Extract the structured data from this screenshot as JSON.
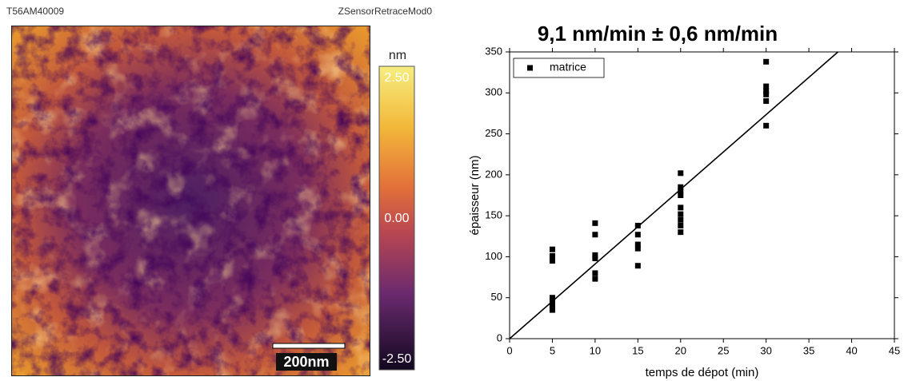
{
  "afm_panel": {
    "sample": "T56AM40009",
    "channel": "ZSensorRetraceMod0",
    "scale_bar": "200nm",
    "colorbar": {
      "unit": "nm",
      "lim": [
        -2.5,
        2.5
      ],
      "ticks": [
        {
          "value": 2.5,
          "label": "2.50"
        },
        {
          "value": 0,
          "label": "0.00"
        },
        {
          "value": -2.5,
          "label": "-2.50"
        }
      ]
    }
  },
  "chart_data": {
    "type": "scatter",
    "title": "9,1 nm/min ± 0,6 nm/min",
    "x_label": "temps de dépot (min)",
    "y_label": "épaisseur (nm)",
    "x": [
      5,
      5,
      5,
      5,
      5,
      5,
      5,
      5,
      10,
      10,
      10,
      10,
      10,
      10,
      15,
      15,
      15,
      15,
      15,
      20,
      20,
      20,
      20,
      20,
      20,
      20,
      20,
      20,
      30,
      30,
      30,
      30,
      30,
      30
    ],
    "series": [
      {
        "name": "matrice",
        "color": "#000000",
        "values": [
          109,
          101,
          95,
          50,
          46,
          42,
          38,
          35,
          141,
          127,
          102,
          98,
          80,
          73,
          138,
          127,
          115,
          110,
          89,
          202,
          185,
          180,
          175,
          160,
          152,
          145,
          138,
          130,
          338,
          308,
          302,
          298,
          290,
          260
        ]
      }
    ],
    "fit": {
      "x": [
        0,
        38.4
      ],
      "y": [
        0,
        350
      ],
      "color": "#000000"
    },
    "xlim": [
      0,
      45
    ],
    "xticks": [
      0,
      5,
      10,
      15,
      20,
      25,
      30,
      35,
      40,
      45
    ],
    "ylim": [
      0,
      350
    ],
    "yticks": [
      0,
      50,
      100,
      150,
      200,
      250,
      300,
      350
    ],
    "legend": "upper-left",
    "grid": false
  }
}
